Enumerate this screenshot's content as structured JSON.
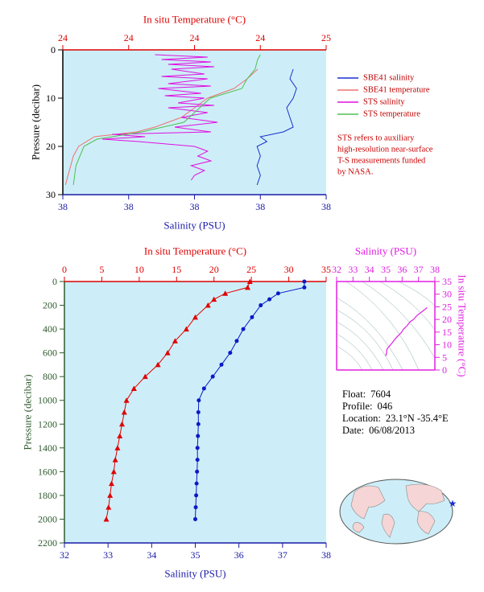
{
  "chart_data": [
    {
      "type": "line",
      "x2label": "In situ Temperature (°C)",
      "xlabel": "Salinity (PSU)",
      "ylabel": "Pressure (decibar)",
      "xlim": [
        37.6,
        38.4
      ],
      "xticks": [
        {
          "value": 37.6,
          "label": "38"
        },
        {
          "value": 37.8,
          "label": "38"
        },
        38,
        {
          "value": 38.2,
          "label": "38"
        },
        {
          "value": 38.4,
          "label": "38"
        }
      ],
      "x2lim": [
        23.6,
        24.6
      ],
      "x2ticks": [
        {
          "value": 23.6,
          "label": "24"
        },
        {
          "value": 23.85,
          "label": "24"
        },
        {
          "value": 24.1,
          "label": "24"
        },
        {
          "value": 24.35,
          "label": "24"
        },
        {
          "value": 24.6,
          "label": "25"
        }
      ],
      "ylim": [
        0,
        30
      ],
      "yticks": [
        0,
        10,
        20,
        30
      ],
      "y_inverted": true,
      "x_color": "#1a1aa8",
      "x2_color": "#dd0000",
      "y_color": "#000000",
      "legend": "right",
      "series": [
        {
          "name": "SBE41 salinity",
          "color": "#1a2fd0",
          "axis": "x",
          "pressure": [
            4,
            6,
            8,
            10,
            12,
            14,
            16,
            17,
            18,
            19,
            20,
            22,
            24,
            26,
            28
          ],
          "values": [
            38.3,
            38.29,
            38.31,
            38.3,
            38.28,
            38.29,
            38.3,
            38.27,
            38.2,
            38.22,
            38.19,
            38.2,
            38.19,
            38.2,
            38.19
          ]
        },
        {
          "name": "SBE41 temperature",
          "color": "#f07070",
          "axis": "x2",
          "pressure": [
            4,
            6,
            8,
            10,
            12,
            14,
            16,
            17,
            18,
            20,
            22,
            24,
            26,
            28
          ],
          "values": [
            24.34,
            24.3,
            24.25,
            24.15,
            24.1,
            24.05,
            23.95,
            23.88,
            23.72,
            23.66,
            23.64,
            23.63,
            23.62,
            23.61
          ]
        },
        {
          "name": "STS salinity",
          "color": "#e010e0",
          "axis": "x",
          "pressure": [
            1,
            1.5,
            2,
            2.5,
            3,
            3.5,
            4,
            5,
            5.5,
            6,
            7,
            7.5,
            8,
            9,
            9.5,
            10,
            11,
            11.5,
            12,
            13,
            14,
            15,
            16,
            17,
            17.5,
            18,
            18.5,
            19,
            20,
            21,
            22,
            23,
            24,
            25,
            26,
            27
          ],
          "values": [
            37.88,
            38.04,
            37.9,
            38.05,
            37.92,
            38.06,
            37.93,
            38.03,
            37.9,
            38.04,
            37.92,
            38.05,
            37.89,
            38.02,
            37.91,
            38.03,
            37.95,
            38.06,
            37.92,
            38.04,
            37.96,
            38.07,
            37.94,
            38.05,
            37.75,
            37.85,
            37.72,
            37.83,
            38.0,
            38.04,
            38.01,
            38.05,
            37.99,
            38.03,
            38.0,
            37.99
          ]
        },
        {
          "name": "STS temperature",
          "color": "#50c050",
          "axis": "x2",
          "pressure": [
            1,
            2,
            4,
            6,
            8,
            10,
            13,
            15,
            17,
            18.5,
            20,
            24,
            28
          ],
          "values": [
            24.35,
            24.34,
            24.33,
            24.3,
            24.28,
            24.16,
            24.1,
            24.06,
            23.9,
            23.73,
            23.68,
            23.65,
            23.64
          ]
        }
      ],
      "note": [
        "STS refers to auxiliary",
        "high-resolution near-surface",
        "T-S measurements funded",
        "by NASA."
      ]
    },
    {
      "type": "line",
      "x2label": "In situ Temperature (°C)",
      "xlabel": "Salinity (PSU)",
      "ylabel": "Pressure (decibar)",
      "xlim": [
        32,
        38
      ],
      "xticks": [
        32,
        33,
        34,
        35,
        36,
        37,
        38
      ],
      "x2lim": [
        0,
        35
      ],
      "x2ticks": [
        0,
        5,
        10,
        15,
        20,
        25,
        30,
        35
      ],
      "ylim": [
        0,
        2200
      ],
      "yticks": [
        0,
        200,
        400,
        600,
        800,
        1000,
        1200,
        1400,
        1600,
        1800,
        2000,
        2200
      ],
      "y_inverted": true,
      "x_color": "#1a1aa8",
      "x2_color": "#dd0000",
      "y_color": "#2e5a2e",
      "series": [
        {
          "color": "#e00000",
          "axis": "x2",
          "marker": "triangle",
          "pressure": [
            0,
            50,
            100,
            150,
            200,
            300,
            400,
            500,
            600,
            700,
            800,
            900,
            1000,
            1100,
            1200,
            1300,
            1400,
            1500,
            1600,
            1700,
            1800,
            1900,
            2000
          ],
          "values": [
            24.8,
            24.5,
            21.5,
            20,
            19.2,
            17.5,
            16.3,
            14.8,
            13.8,
            12.5,
            10.8,
            9.3,
            8.3,
            8.0,
            7.7,
            7.4,
            7.1,
            6.8,
            6.6,
            6.3,
            6.1,
            5.9,
            5.6
          ]
        },
        {
          "color": "#0a1ac8",
          "axis": "x",
          "marker": "circle",
          "pressure": [
            0,
            50,
            100,
            150,
            200,
            300,
            400,
            500,
            600,
            700,
            800,
            900,
            1000,
            1100,
            1200,
            1300,
            1400,
            1500,
            1600,
            1700,
            1800,
            1900,
            2000
          ],
          "values": [
            37.5,
            37.5,
            36.9,
            36.7,
            36.5,
            36.3,
            36.1,
            35.95,
            35.8,
            35.6,
            35.4,
            35.2,
            35.08,
            35.07,
            35.07,
            35.06,
            35.05,
            35.05,
            35.04,
            35.03,
            35.02,
            35.01,
            35.0
          ]
        }
      ]
    },
    {
      "type": "ts",
      "xlabel": "Salinity (PSU)",
      "ylabel": "In situ Temperature (°C)",
      "xlim": [
        32,
        38
      ],
      "xticks": [
        32,
        33,
        34,
        35,
        36,
        37,
        38
      ],
      "ylim": [
        0,
        35
      ],
      "yticks": [
        0,
        5,
        10,
        15,
        20,
        25,
        30,
        35
      ],
      "color": "#e020e0"
    }
  ],
  "info": [
    {
      "label": "Float:",
      "value": "7604"
    },
    {
      "label": "Profile:",
      "value": "046"
    },
    {
      "label": "Location:",
      "value": "23.1°N  -35.4°E"
    },
    {
      "label": "Date:",
      "value": "06/08/2013"
    }
  ]
}
